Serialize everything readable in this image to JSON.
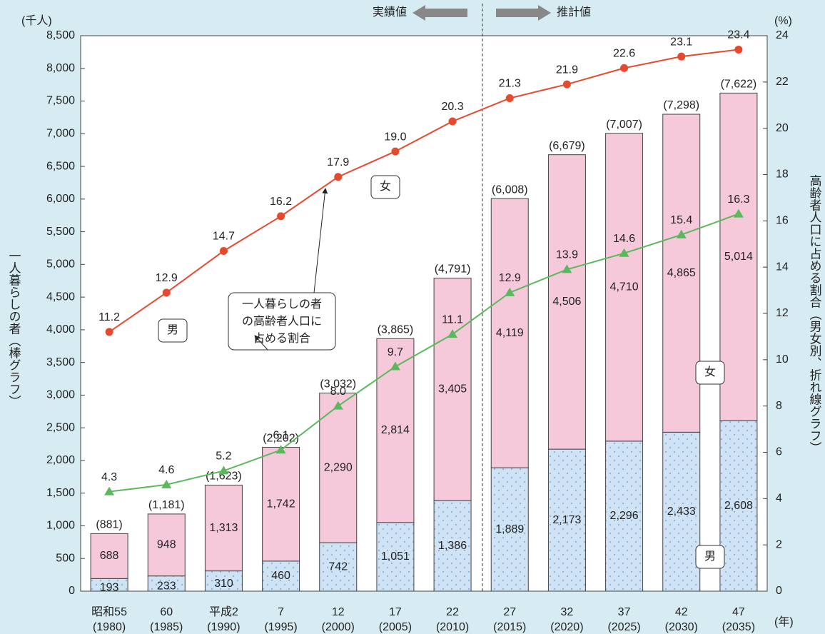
{
  "chart_data": {
    "type": "bar",
    "y_unit_label": "(千人)",
    "y2_unit_label": "(%)",
    "x_unit_label": "(年)",
    "ylabel": "一人暮らしの者（棒グラフ）",
    "y2label": "高齢者人口に占める割合（男女別、折れ線グラフ）",
    "annotation": [
      "一人暮らしの者",
      "の高齢者人口に",
      "占める割合"
    ],
    "period_labels": [
      "実績値",
      "推計値"
    ],
    "categories": [
      [
        "昭和55",
        "(1980)"
      ],
      [
        "60",
        "(1985)"
      ],
      [
        "平成2",
        "(1990)"
      ],
      [
        "7",
        "(1995)"
      ],
      [
        "12",
        "(2000)"
      ],
      [
        "17",
        "(2005)"
      ],
      [
        "22",
        "(2010)"
      ],
      [
        "27",
        "(2015)"
      ],
      [
        "32",
        "(2020)"
      ],
      [
        "37",
        "(2025)"
      ],
      [
        "42",
        "(2030)"
      ],
      [
        "47",
        "(2035)"
      ]
    ],
    "ylim": [
      0,
      8500
    ],
    "yticks": [
      0,
      500,
      {
        "value": 1000,
        "label": "1,000"
      },
      {
        "value": 1500,
        "label": "1,500"
      },
      {
        "value": 2000,
        "label": "2,000"
      },
      {
        "value": 2500,
        "label": "2,500"
      },
      {
        "value": 3000,
        "label": "3,000"
      },
      {
        "value": 3500,
        "label": "3,500"
      },
      {
        "value": 4000,
        "label": "4,000"
      },
      {
        "value": 4500,
        "label": "4,500"
      },
      {
        "value": 5000,
        "label": "5,000"
      },
      {
        "value": 5500,
        "label": "5,500"
      },
      {
        "value": 6000,
        "label": "6,000"
      },
      {
        "value": 6500,
        "label": "6,500"
      },
      {
        "value": 7000,
        "label": "7,000"
      },
      {
        "value": 7500,
        "label": "7,500"
      },
      {
        "value": 8000,
        "label": "8,000"
      },
      {
        "value": 8500,
        "label": "8,500"
      }
    ],
    "y2lim": [
      0,
      24
    ],
    "y2ticks": [
      0,
      2,
      4,
      6,
      8,
      10,
      12,
      14,
      16,
      18,
      20,
      22,
      24
    ],
    "totals": [
      881,
      1181,
      1623,
      2202,
      3032,
      3865,
      4791,
      6008,
      6679,
      7007,
      7298,
      7622
    ],
    "total_labels": [
      "(881)",
      "(1,181)",
      "(1,623)",
      "(2,202)",
      "(3,032)",
      "(3,865)",
      "(4,791)",
      "(6,008)",
      "(6,679)",
      "(7,007)",
      "(7,298)",
      "(7,622)"
    ],
    "series": [
      {
        "name": "男",
        "type": "bar",
        "color": "#cfe3f5",
        "values": [
          193,
          233,
          310,
          460,
          742,
          1051,
          1386,
          1889,
          2173,
          2296,
          2433,
          2608
        ],
        "value_labels": [
          "193",
          "233",
          "310",
          "460",
          "742",
          "1,051",
          "1,386",
          "1,889",
          "2,173",
          "2,296",
          "2,433",
          "2,608"
        ]
      },
      {
        "name": "女",
        "type": "bar",
        "color": "#f5c8da",
        "values": [
          688,
          948,
          1313,
          1742,
          2290,
          2814,
          3405,
          4119,
          4506,
          4710,
          4865,
          5014
        ],
        "value_labels": [
          "688",
          "948",
          "1,313",
          "1,742",
          "2,290",
          "2,814",
          "3,405",
          "4,119",
          "4,506",
          "4,710",
          "4,865",
          "5,014"
        ]
      },
      {
        "name": "女",
        "type": "line",
        "axis": "y2",
        "marker": "circle",
        "color": "#e64a2e",
        "values": [
          11.2,
          12.9,
          14.7,
          16.2,
          17.9,
          19.0,
          20.3,
          21.3,
          21.9,
          22.6,
          23.1,
          23.4
        ],
        "value_labels": [
          "11.2",
          "12.9",
          "14.7",
          "16.2",
          "17.9",
          "19.0",
          "20.3",
          "21.3",
          "21.9",
          "22.6",
          "23.1",
          "23.4"
        ]
      },
      {
        "name": "男",
        "type": "line",
        "axis": "y2",
        "marker": "triangle",
        "color": "#5cb85c",
        "values": [
          4.3,
          4.6,
          5.2,
          6.1,
          8.0,
          9.7,
          11.1,
          12.9,
          13.9,
          14.6,
          15.4,
          16.3
        ],
        "value_labels": [
          "4.3",
          "4.6",
          "5.2",
          "6.1",
          "8.0",
          "9.7",
          "11.1",
          "12.9",
          "13.9",
          "14.6",
          "15.4",
          "16.3"
        ]
      }
    ]
  }
}
